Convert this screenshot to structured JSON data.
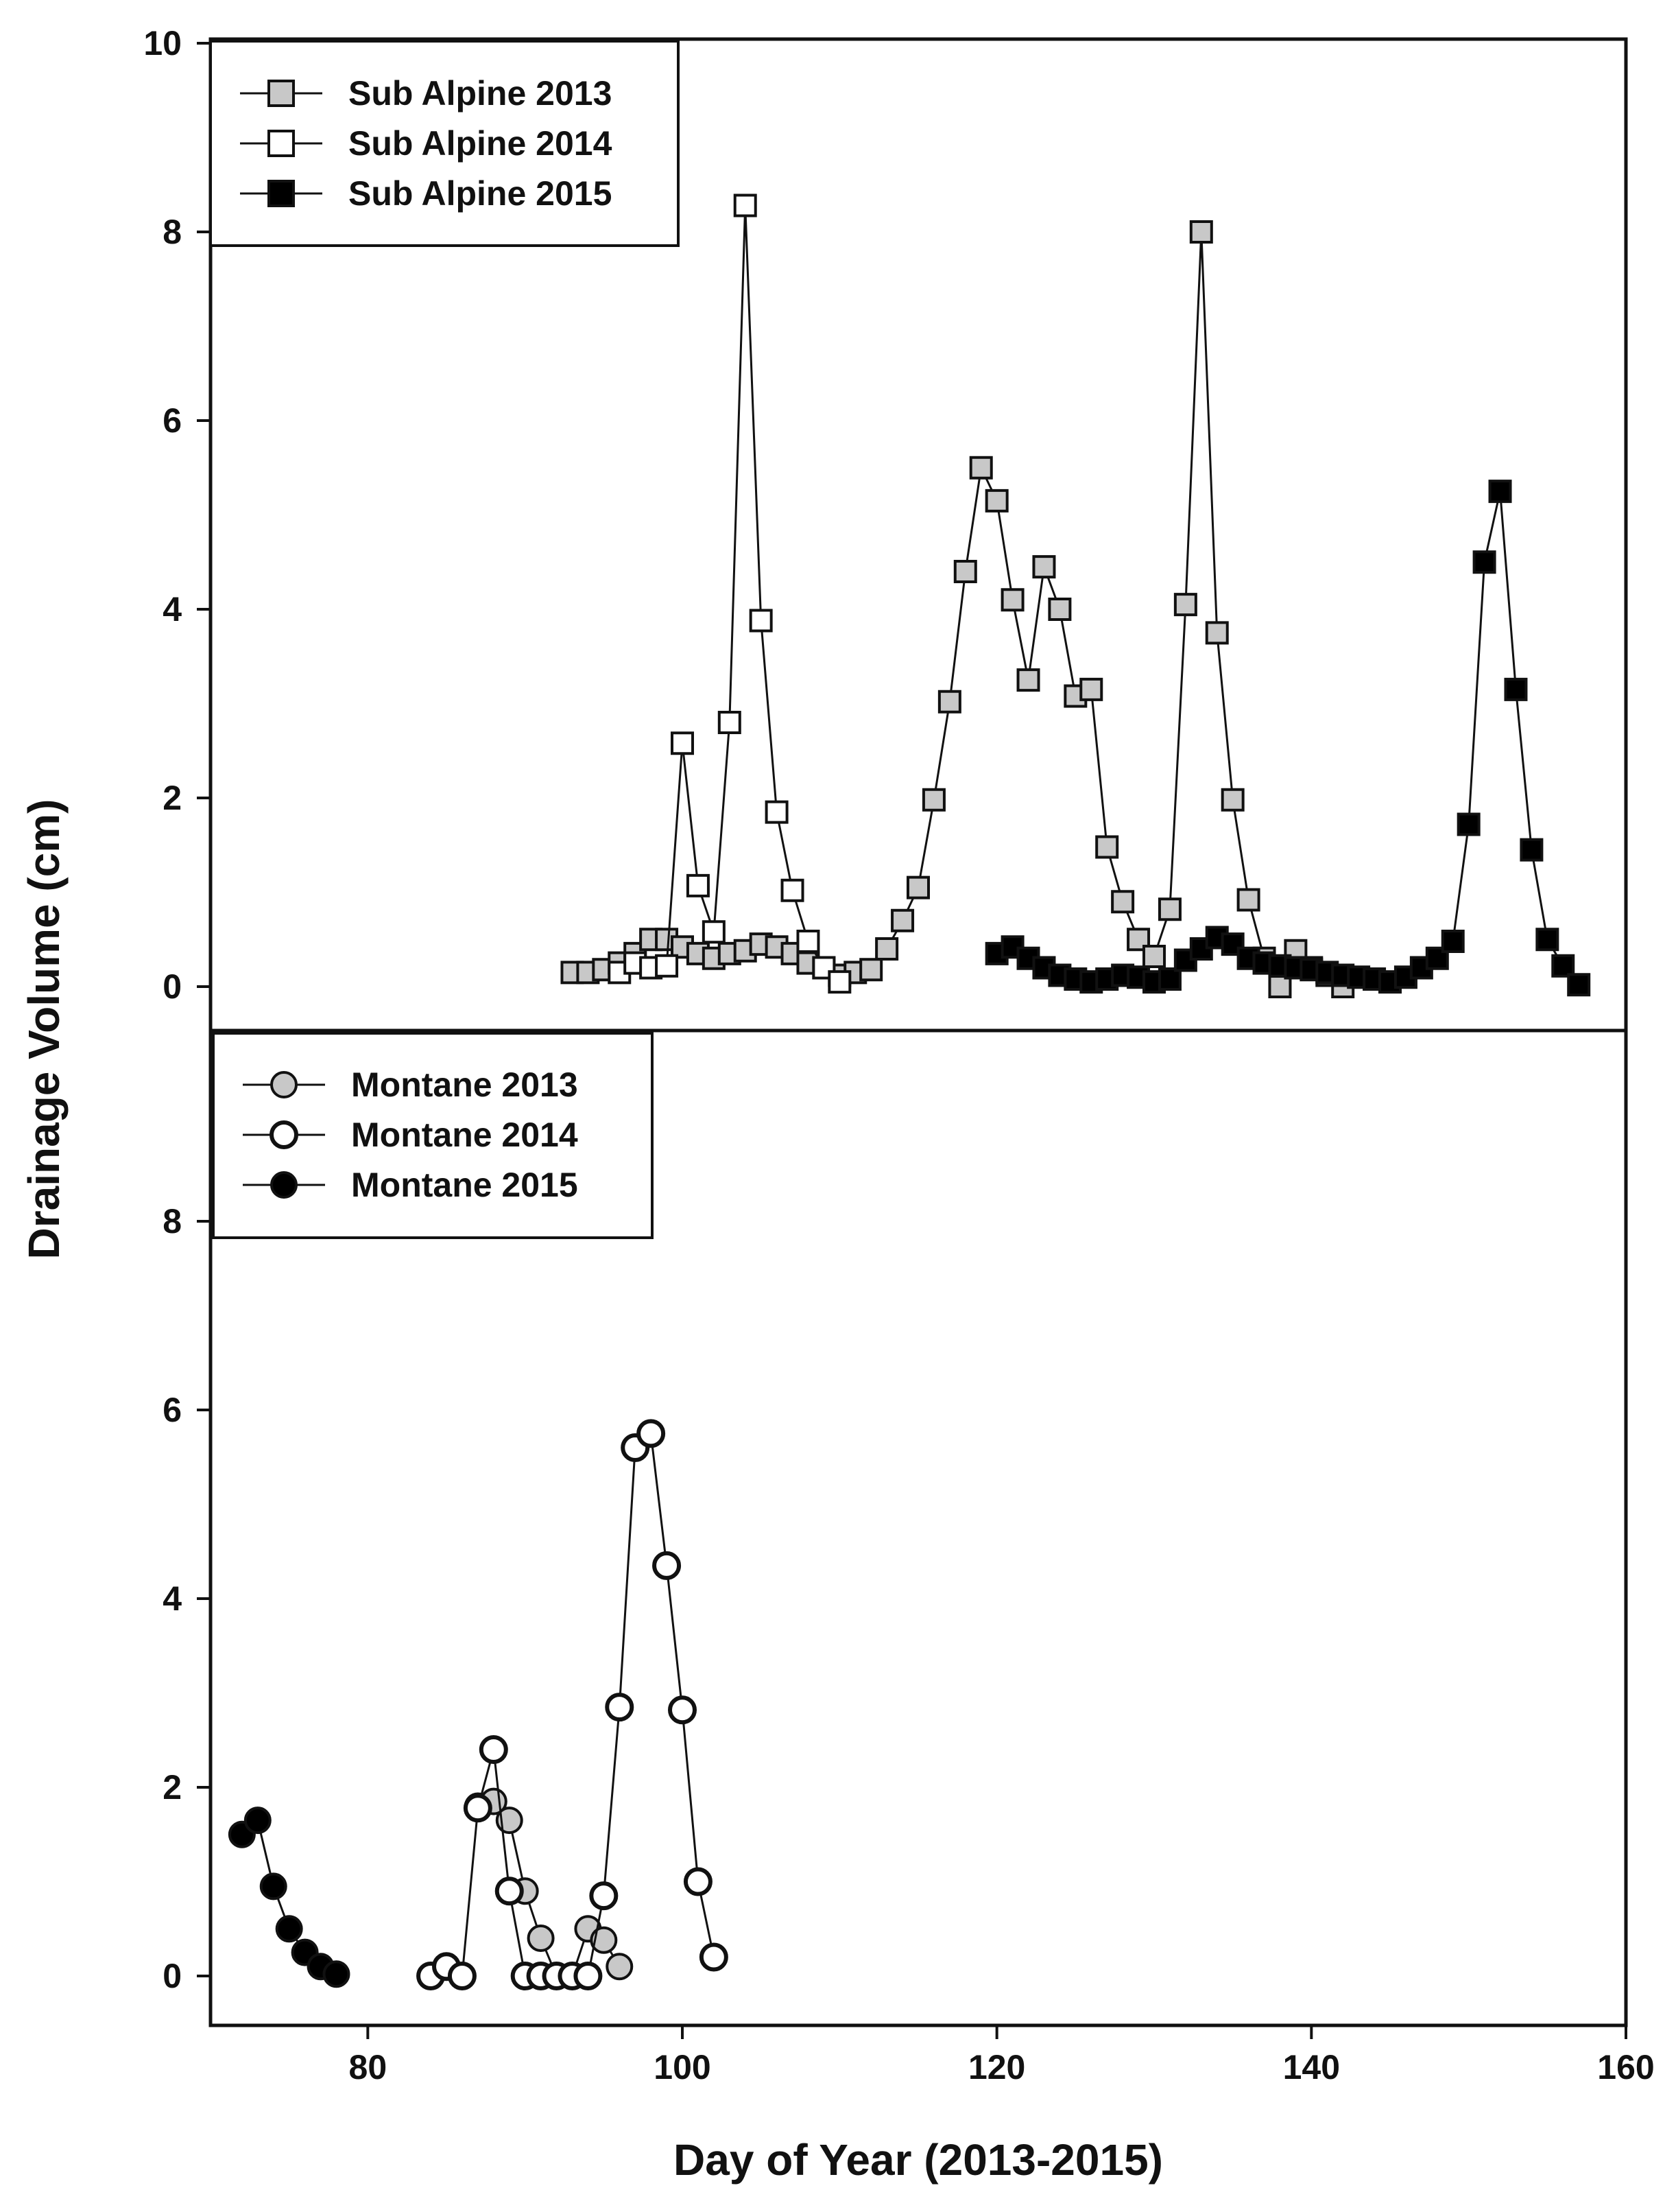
{
  "chart_data": {
    "type": "scatter",
    "xlabel": "Day of Year (2013-2015)",
    "ylabel": "Drainage Volume (cm)",
    "x_ticks": [
      "80",
      "100",
      "120",
      "140",
      "160"
    ],
    "xlim": [
      70,
      160
    ],
    "panels": [
      {
        "name": "sub-alpine",
        "ylim": [
          -0.5,
          10
        ],
        "y_ticks": [
          "0",
          "2",
          "4",
          "6",
          "8",
          "10"
        ],
        "legend_position": "top-left",
        "series": [
          {
            "name": "Sub Alpine 2013",
            "marker": "square",
            "fill": "#c8c8c8",
            "x": [
              93,
              94,
              95,
              96,
              97,
              98,
              99,
              100,
              101,
              102,
              103,
              104,
              105,
              106,
              107,
              108,
              109,
              110,
              111,
              112,
              113,
              114,
              115,
              116,
              117,
              118,
              119,
              120,
              121,
              122,
              123,
              124,
              125,
              126,
              127,
              128,
              129,
              130,
              131,
              132,
              133,
              134,
              135,
              136,
              137,
              138,
              139,
              140,
              141,
              142
            ],
            "y": [
              0.15,
              0.15,
              0.18,
              0.25,
              0.35,
              0.5,
              0.5,
              0.42,
              0.35,
              0.3,
              0.35,
              0.38,
              0.45,
              0.42,
              0.35,
              0.25,
              0.2,
              0.12,
              0.15,
              0.18,
              0.4,
              0.7,
              1.05,
              1.98,
              3.02,
              4.4,
              5.5,
              5.15,
              4.1,
              3.25,
              4.45,
              4.0,
              3.08,
              3.15,
              1.48,
              0.9,
              0.5,
              0.32,
              0.82,
              4.05,
              8.0,
              3.75,
              1.98,
              0.92,
              0.3,
              0.0,
              0.38,
              0.2,
              0.12,
              0.0
            ]
          },
          {
            "name": "Sub Alpine 2014",
            "marker": "square",
            "fill": "#ffffff",
            "x": [
              96,
              97,
              98,
              99,
              100,
              101,
              102,
              103,
              104,
              105,
              106,
              107,
              108,
              109,
              110
            ],
            "y": [
              0.15,
              0.25,
              0.2,
              0.22,
              2.58,
              1.07,
              0.58,
              2.8,
              8.28,
              3.88,
              1.85,
              1.02,
              0.48,
              0.2,
              0.05
            ]
          },
          {
            "name": "Sub Alpine 2015",
            "marker": "square",
            "fill": "#000000",
            "x": [
              120,
              121,
              122,
              123,
              124,
              125,
              126,
              127,
              128,
              129,
              130,
              131,
              132,
              133,
              134,
              135,
              136,
              137,
              138,
              139,
              140,
              141,
              142,
              143,
              144,
              145,
              146,
              147,
              148,
              149,
              150,
              151,
              152,
              153,
              154,
              155,
              156,
              157
            ],
            "y": [
              0.35,
              0.42,
              0.3,
              0.2,
              0.12,
              0.08,
              0.05,
              0.08,
              0.12,
              0.1,
              0.05,
              0.08,
              0.28,
              0.4,
              0.52,
              0.45,
              0.3,
              0.25,
              0.22,
              0.2,
              0.18,
              0.15,
              0.12,
              0.1,
              0.08,
              0.05,
              0.1,
              0.2,
              0.3,
              0.48,
              1.72,
              4.5,
              5.25,
              3.15,
              1.45,
              0.5,
              0.22,
              0.02
            ]
          }
        ]
      },
      {
        "name": "montane",
        "ylim": [
          -0.5,
          10
        ],
        "y_ticks": [
          "0",
          "2",
          "4",
          "6",
          "8"
        ],
        "legend_position": "top-left",
        "series": [
          {
            "name": "Montane  2013",
            "marker": "circle",
            "fill": "#c8c8c8",
            "x": [
              87,
              88,
              89,
              90,
              91,
              92,
              93,
              94,
              95,
              96
            ],
            "y": [
              1.8,
              1.85,
              1.65,
              0.9,
              0.4,
              0.0,
              0.0,
              0.5,
              0.38,
              0.1
            ]
          },
          {
            "name": "Montane  2014",
            "marker": "circle",
            "fill": "#ffffff",
            "x": [
              84,
              85,
              86,
              87,
              88,
              89,
              90,
              91,
              92,
              93,
              94,
              95,
              96,
              97,
              98,
              99,
              100,
              101,
              102
            ],
            "y": [
              0.0,
              0.1,
              0.0,
              1.78,
              2.4,
              0.9,
              0.0,
              0.0,
              0.0,
              0.0,
              0.0,
              0.85,
              2.85,
              5.6,
              5.75,
              4.35,
              2.82,
              1.0,
              0.2
            ]
          },
          {
            "name": "Montane  2015",
            "marker": "circle",
            "fill": "#000000",
            "x": [
              72,
              73,
              74,
              75,
              76,
              77,
              78
            ],
            "y": [
              1.5,
              1.65,
              0.95,
              0.5,
              0.25,
              0.1,
              0.02
            ]
          }
        ]
      }
    ]
  }
}
